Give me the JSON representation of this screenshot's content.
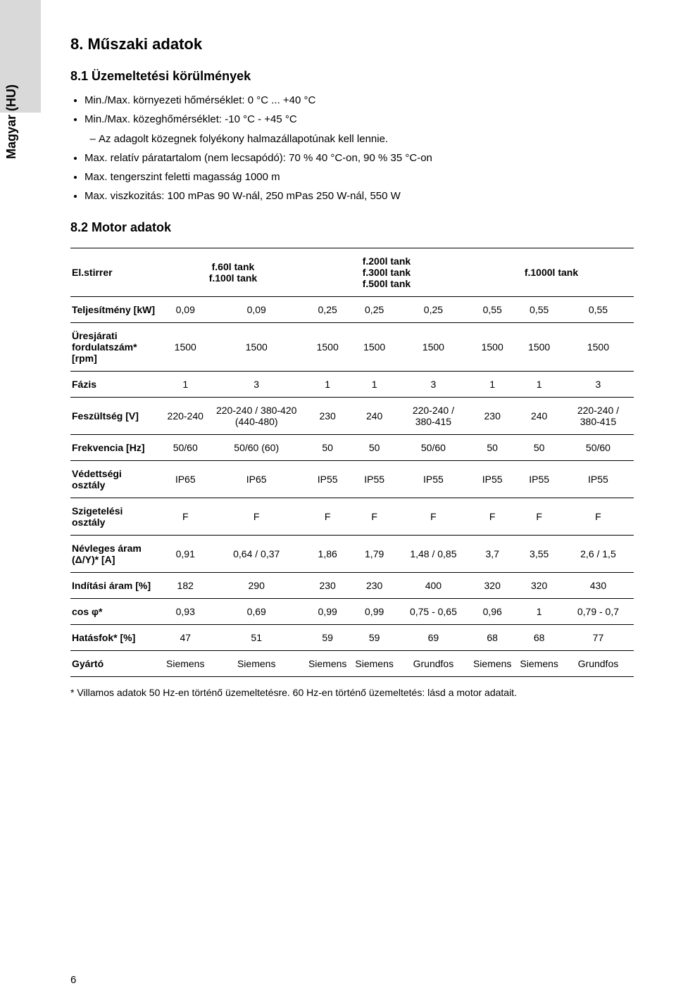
{
  "side_label": "Magyar (HU)",
  "section_title": "8. Műszaki adatok",
  "s1": {
    "title": "8.1 Üzemeltetési körülmények",
    "items": [
      "Min./Max. környezeti hőmérséklet: 0 °C ... +40 °C",
      "Min./Max. közeghőmérséklet: -10 °C - +45 °C",
      "Max. relatív páratartalom (nem lecsapódó): 70 % 40 °C-on, 90 % 35 °C-on",
      "Max. tengerszint feletti magasság 1000 m",
      "Max. viszkozitás: 100 mPas 90 W-nál, 250 mPas 250 W-nál, 550 W"
    ],
    "sub_item": "Az adagolt közegnek folyékony halmazállapotúnak kell lennie."
  },
  "s2_title": "8.2 Motor adatok",
  "table": {
    "header_rowlabel": "El.stirrer",
    "col_groups": [
      "f.60l tank\nf.100l tank",
      "f.200l tank\nf.300l tank\nf.500l tank",
      "f.1000l tank"
    ],
    "rows": [
      {
        "label": "Teljesítmény [kW]",
        "cells": [
          "0,09",
          "0,09",
          "0,25",
          "0,25",
          "0,25",
          "0,55",
          "0,55",
          "0,55"
        ]
      },
      {
        "label": "Üresjárati fordulatszám* [rpm]",
        "cells": [
          "1500",
          "1500",
          "1500",
          "1500",
          "1500",
          "1500",
          "1500",
          "1500"
        ]
      },
      {
        "label": "Fázis",
        "cells": [
          "1",
          "3",
          "1",
          "1",
          "3",
          "1",
          "1",
          "3"
        ]
      },
      {
        "label": "Feszültség [V]",
        "cells": [
          "220-240",
          "220-240 / 380-420 (440-480)",
          "230",
          "240",
          "220-240 / 380-415",
          "230",
          "240",
          "220-240 / 380-415"
        ]
      },
      {
        "label": "Frekvencia [Hz]",
        "cells": [
          "50/60",
          "50/60 (60)",
          "50",
          "50",
          "50/60",
          "50",
          "50",
          "50/60"
        ]
      },
      {
        "label": "Védettségi osztály",
        "cells": [
          "IP65",
          "IP65",
          "IP55",
          "IP55",
          "IP55",
          "IP55",
          "IP55",
          "IP55"
        ]
      },
      {
        "label": "Szigetelési osztály",
        "cells": [
          "F",
          "F",
          "F",
          "F",
          "F",
          "F",
          "F",
          "F"
        ]
      },
      {
        "label": "Névleges áram (Δ/Y)* [A]",
        "cells": [
          "0,91",
          "0,64 / 0,37",
          "1,86",
          "1,79",
          "1,48 / 0,85",
          "3,7",
          "3,55",
          "2,6 / 1,5"
        ]
      },
      {
        "label": "Indítási áram [%]",
        "cells": [
          "182",
          "290",
          "230",
          "230",
          "400",
          "320",
          "320",
          "430"
        ]
      },
      {
        "label": "cos φ*",
        "cells": [
          "0,93",
          "0,69",
          "0,99",
          "0,99",
          "0,75 - 0,65",
          "0,96",
          "1",
          "0,79 - 0,7"
        ]
      },
      {
        "label": "Hatásfok* [%]",
        "cells": [
          "47",
          "51",
          "59",
          "59",
          "69",
          "68",
          "68",
          "77"
        ]
      },
      {
        "label": "Gyártó",
        "cells": [
          "Siemens",
          "Siemens",
          "Siemens",
          "Siemens",
          "Grundfos",
          "Siemens",
          "Siemens",
          "Grundfos"
        ]
      }
    ]
  },
  "footnote": "* Villamos adatok 50 Hz-en történő üzemeltetésre. 60 Hz-en történő üzemeltetés: lásd a motor adatait.",
  "page_number": "6"
}
